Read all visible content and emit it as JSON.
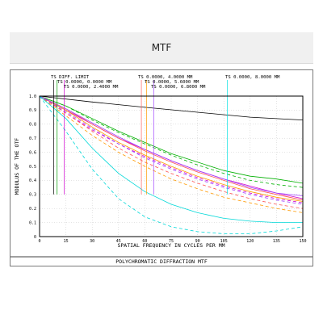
{
  "page": {
    "title": "MTF"
  },
  "chart_data": {
    "type": "line",
    "xlabel": "SPATIAL FREQUENCY IN CYCLES PER MM",
    "ylabel": "MODULUS OF THE OTF",
    "footer": "POLYCHROMATIC DIFFRACTION MTF",
    "xlim": [
      0,
      150
    ],
    "ylim": [
      0,
      1.0
    ],
    "xticks": [
      0,
      15,
      30,
      45,
      60,
      75,
      90,
      105,
      120,
      135,
      150
    ],
    "yticks": [
      0,
      0.1,
      0.2,
      0.3,
      0.4,
      0.5,
      0.6,
      0.7,
      0.8,
      0.9,
      1.0
    ],
    "xtick_labels": [
      "0",
      "15",
      "30",
      "45",
      "60",
      "75",
      "90",
      "105",
      "120",
      "135",
      "150"
    ],
    "ytick_labels": [
      "0",
      "0.1",
      "0.2",
      "0.3",
      "0.4",
      "0.5",
      "0.6",
      "0.7",
      "0.8",
      "0.9",
      "1.0"
    ],
    "legend_entries": [
      {
        "text": "TS DIFF. LIMIT",
        "color": "#000000"
      },
      {
        "text": "TS 0.0000, 0.0000 MM",
        "color": "#00a000"
      },
      {
        "text": "TS 0.0000, 2.4000 MM",
        "color": "#d000d0"
      },
      {
        "text": "TS 0.0000, 4.0000 MM",
        "color": "#ff6060"
      },
      {
        "text": "TS 0.0000, 5.6000 MM",
        "color": "#ff9900"
      },
      {
        "text": "TS 0.0000, 6.8000 MM",
        "color": "#a040ff"
      },
      {
        "text": "TS 0.0000, 8.0000 MM",
        "color": "#00e0e0"
      }
    ],
    "legend_markers": [
      {
        "x": 8,
        "color": "#000000"
      },
      {
        "x": 10,
        "color": "#00a000"
      },
      {
        "x": 14,
        "color": "#d000d0"
      },
      {
        "x": 58,
        "color": "#ff6060"
      },
      {
        "x": 61,
        "color": "#ff9900"
      },
      {
        "x": 65,
        "color": "#a040ff"
      },
      {
        "x": 107,
        "color": "#00e0e0"
      }
    ],
    "series": [
      {
        "color": "#000000",
        "dash": "",
        "x": [
          0,
          30,
          60,
          90,
          120,
          150
        ],
        "y": [
          1.0,
          0.958,
          0.92,
          0.885,
          0.85,
          0.83
        ]
      },
      {
        "color": "#00b000",
        "dash": "",
        "x": [
          0,
          15,
          30,
          45,
          60,
          75,
          90,
          105,
          120,
          135,
          150
        ],
        "y": [
          1.0,
          0.93,
          0.84,
          0.75,
          0.67,
          0.59,
          0.53,
          0.47,
          0.43,
          0.41,
          0.38
        ]
      },
      {
        "color": "#00b000",
        "dash": "4,3",
        "x": [
          0,
          15,
          30,
          45,
          60,
          75,
          90,
          105,
          120,
          135,
          150
        ],
        "y": [
          1.0,
          0.93,
          0.83,
          0.74,
          0.66,
          0.58,
          0.51,
          0.45,
          0.4,
          0.37,
          0.35
        ]
      },
      {
        "color": "#d000d0",
        "dash": "",
        "x": [
          0,
          15,
          30,
          45,
          60,
          75,
          90,
          105,
          120,
          135,
          150
        ],
        "y": [
          1.0,
          0.9,
          0.8,
          0.7,
          0.62,
          0.54,
          0.47,
          0.41,
          0.36,
          0.31,
          0.27
        ]
      },
      {
        "color": "#d000d0",
        "dash": "4,3",
        "x": [
          0,
          15,
          30,
          45,
          60,
          75,
          90,
          105,
          120,
          135,
          150
        ],
        "y": [
          1.0,
          0.88,
          0.76,
          0.66,
          0.57,
          0.49,
          0.42,
          0.36,
          0.31,
          0.27,
          0.24
        ]
      },
      {
        "color": "#ff5050",
        "dash": "",
        "x": [
          0,
          15,
          30,
          45,
          60,
          75,
          90,
          105,
          120,
          135,
          150
        ],
        "y": [
          1.0,
          0.91,
          0.8,
          0.7,
          0.61,
          0.53,
          0.46,
          0.4,
          0.34,
          0.3,
          0.26
        ]
      },
      {
        "color": "#ff5050",
        "dash": "4,3",
        "x": [
          0,
          15,
          30,
          45,
          60,
          75,
          90,
          105,
          120,
          135,
          150
        ],
        "y": [
          1.0,
          0.88,
          0.75,
          0.63,
          0.53,
          0.45,
          0.38,
          0.32,
          0.27,
          0.23,
          0.2
        ]
      },
      {
        "color": "#ff9900",
        "dash": "",
        "x": [
          0,
          15,
          30,
          45,
          60,
          75,
          90,
          105,
          120,
          135,
          150
        ],
        "y": [
          1.0,
          0.9,
          0.78,
          0.67,
          0.58,
          0.5,
          0.43,
          0.37,
          0.32,
          0.28,
          0.25
        ]
      },
      {
        "color": "#ff9900",
        "dash": "4,3",
        "x": [
          0,
          15,
          30,
          45,
          60,
          75,
          90,
          105,
          120,
          135,
          150
        ],
        "y": [
          1.0,
          0.86,
          0.72,
          0.6,
          0.5,
          0.41,
          0.34,
          0.28,
          0.24,
          0.2,
          0.17
        ]
      },
      {
        "color": "#a040ff",
        "dash": "",
        "x": [
          0,
          15,
          30,
          45,
          60,
          75,
          90,
          105,
          120,
          135,
          150
        ],
        "y": [
          1.0,
          0.91,
          0.81,
          0.71,
          0.62,
          0.54,
          0.47,
          0.41,
          0.35,
          0.31,
          0.29
        ]
      },
      {
        "color": "#a040ff",
        "dash": "4,3",
        "x": [
          0,
          15,
          30,
          45,
          60,
          75,
          90,
          105,
          120,
          135,
          150
        ],
        "y": [
          1.0,
          0.89,
          0.77,
          0.66,
          0.56,
          0.48,
          0.41,
          0.35,
          0.3,
          0.26,
          0.23
        ]
      },
      {
        "color": "#00d8d8",
        "dash": "",
        "x": [
          0,
          15,
          30,
          45,
          60,
          75,
          90,
          105,
          120,
          135,
          150
        ],
        "y": [
          1.0,
          0.84,
          0.63,
          0.45,
          0.32,
          0.23,
          0.17,
          0.13,
          0.11,
          0.1,
          0.1
        ]
      },
      {
        "color": "#00d8d8",
        "dash": "4,3",
        "x": [
          0,
          15,
          30,
          45,
          60,
          75,
          90,
          105,
          120,
          135,
          150
        ],
        "y": [
          1.0,
          0.75,
          0.48,
          0.27,
          0.14,
          0.07,
          0.035,
          0.02,
          0.02,
          0.04,
          0.07
        ]
      }
    ]
  }
}
